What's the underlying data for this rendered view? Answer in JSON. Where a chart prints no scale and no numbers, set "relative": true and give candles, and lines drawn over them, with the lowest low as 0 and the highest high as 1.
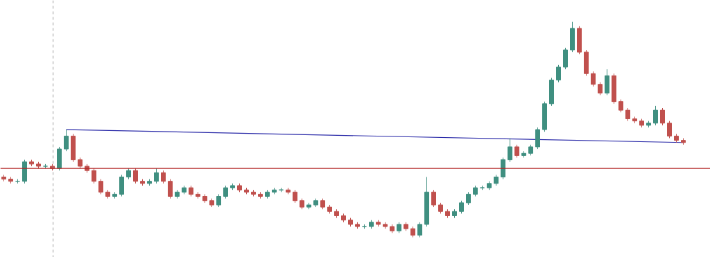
{
  "chart_data": {
    "type": "candlestick",
    "relative": true,
    "categories": [
      null,
      null,
      null,
      null,
      null,
      null,
      null,
      null,
      null,
      null,
      null,
      null,
      null,
      null,
      null,
      null,
      null,
      null,
      null,
      null,
      null,
      null,
      null,
      null,
      null,
      null,
      null,
      null,
      null,
      null,
      null,
      null,
      null,
      null,
      null,
      null,
      null,
      null,
      null,
      null,
      null,
      null,
      null,
      null,
      null,
      null,
      null,
      null,
      null,
      null,
      null,
      null,
      null,
      null,
      null,
      null,
      null,
      null,
      null,
      null,
      null,
      null,
      null,
      null,
      null,
      null,
      null,
      null,
      null,
      null,
      null,
      null,
      null,
      null,
      null,
      null,
      null,
      null,
      null,
      null,
      null,
      null,
      null,
      null,
      null,
      null,
      null,
      null,
      null,
      null,
      null,
      null,
      null,
      null,
      null,
      null,
      null,
      null,
      null
    ],
    "ohlc": [
      [
        0.28,
        0.29,
        0.26,
        0.27
      ],
      [
        0.27,
        0.28,
        0.25,
        0.26
      ],
      [
        0.26,
        0.27,
        0.25,
        0.26
      ],
      [
        0.26,
        0.36,
        0.25,
        0.35
      ],
      [
        0.35,
        0.36,
        0.33,
        0.34
      ],
      [
        0.34,
        0.35,
        0.32,
        0.33
      ],
      [
        0.33,
        0.34,
        0.32,
        0.33
      ],
      [
        0.33,
        0.34,
        0.31,
        0.32
      ],
      [
        0.32,
        0.42,
        0.31,
        0.41
      ],
      [
        0.41,
        0.5,
        0.4,
        0.47
      ],
      [
        0.47,
        0.48,
        0.35,
        0.36
      ],
      [
        0.36,
        0.37,
        0.32,
        0.33
      ],
      [
        0.33,
        0.34,
        0.3,
        0.31
      ],
      [
        0.31,
        0.32,
        0.25,
        0.26
      ],
      [
        0.26,
        0.27,
        0.2,
        0.21
      ],
      [
        0.21,
        0.22,
        0.18,
        0.19
      ],
      [
        0.19,
        0.21,
        0.18,
        0.2
      ],
      [
        0.2,
        0.29,
        0.19,
        0.28
      ],
      [
        0.28,
        0.32,
        0.27,
        0.31
      ],
      [
        0.31,
        0.32,
        0.25,
        0.26
      ],
      [
        0.26,
        0.27,
        0.24,
        0.25
      ],
      [
        0.25,
        0.27,
        0.24,
        0.26
      ],
      [
        0.26,
        0.32,
        0.25,
        0.3
      ],
      [
        0.3,
        0.31,
        0.25,
        0.26
      ],
      [
        0.26,
        0.27,
        0.18,
        0.19
      ],
      [
        0.19,
        0.22,
        0.18,
        0.21
      ],
      [
        0.21,
        0.24,
        0.2,
        0.23
      ],
      [
        0.23,
        0.24,
        0.19,
        0.2
      ],
      [
        0.2,
        0.21,
        0.18,
        0.19
      ],
      [
        0.19,
        0.2,
        0.16,
        0.17
      ],
      [
        0.17,
        0.18,
        0.14,
        0.15
      ],
      [
        0.15,
        0.2,
        0.14,
        0.19
      ],
      [
        0.19,
        0.24,
        0.18,
        0.23
      ],
      [
        0.23,
        0.25,
        0.22,
        0.24
      ],
      [
        0.24,
        0.25,
        0.21,
        0.22
      ],
      [
        0.22,
        0.23,
        0.2,
        0.21
      ],
      [
        0.21,
        0.22,
        0.19,
        0.2
      ],
      [
        0.2,
        0.21,
        0.18,
        0.19
      ],
      [
        0.19,
        0.22,
        0.18,
        0.21
      ],
      [
        0.21,
        0.23,
        0.2,
        0.22
      ],
      [
        0.22,
        0.23,
        0.21,
        0.22
      ],
      [
        0.22,
        0.23,
        0.2,
        0.21
      ],
      [
        0.21,
        0.22,
        0.16,
        0.17
      ],
      [
        0.17,
        0.18,
        0.13,
        0.14
      ],
      [
        0.14,
        0.16,
        0.13,
        0.15
      ],
      [
        0.15,
        0.18,
        0.14,
        0.17
      ],
      [
        0.17,
        0.18,
        0.13,
        0.14
      ],
      [
        0.14,
        0.15,
        0.11,
        0.12
      ],
      [
        0.12,
        0.13,
        0.09,
        0.1
      ],
      [
        0.1,
        0.11,
        0.07,
        0.08
      ],
      [
        0.08,
        0.09,
        0.05,
        0.06
      ],
      [
        0.06,
        0.07,
        0.04,
        0.05
      ],
      [
        0.05,
        0.06,
        0.04,
        0.05
      ],
      [
        0.05,
        0.08,
        0.04,
        0.07
      ],
      [
        0.07,
        0.08,
        0.05,
        0.06
      ],
      [
        0.06,
        0.07,
        0.04,
        0.05
      ],
      [
        0.05,
        0.06,
        0.02,
        0.03
      ],
      [
        0.03,
        0.07,
        0.02,
        0.06
      ],
      [
        0.06,
        0.07,
        0.03,
        0.04
      ],
      [
        0.04,
        0.05,
        0.0,
        0.01
      ],
      [
        0.01,
        0.07,
        0.0,
        0.06
      ],
      [
        0.06,
        0.28,
        0.05,
        0.21
      ],
      [
        0.21,
        0.22,
        0.14,
        0.15
      ],
      [
        0.15,
        0.16,
        0.11,
        0.12
      ],
      [
        0.12,
        0.13,
        0.09,
        0.1
      ],
      [
        0.1,
        0.13,
        0.09,
        0.12
      ],
      [
        0.12,
        0.17,
        0.11,
        0.16
      ],
      [
        0.16,
        0.21,
        0.15,
        0.2
      ],
      [
        0.2,
        0.24,
        0.19,
        0.23
      ],
      [
        0.23,
        0.24,
        0.22,
        0.23
      ],
      [
        0.23,
        0.26,
        0.22,
        0.25
      ],
      [
        0.25,
        0.29,
        0.24,
        0.28
      ],
      [
        0.28,
        0.37,
        0.27,
        0.36
      ],
      [
        0.36,
        0.46,
        0.35,
        0.42
      ],
      [
        0.42,
        0.43,
        0.37,
        0.38
      ],
      [
        0.38,
        0.4,
        0.37,
        0.39
      ],
      [
        0.39,
        0.43,
        0.38,
        0.42
      ],
      [
        0.42,
        0.51,
        0.41,
        0.5
      ],
      [
        0.5,
        0.63,
        0.49,
        0.62
      ],
      [
        0.62,
        0.74,
        0.61,
        0.73
      ],
      [
        0.73,
        0.8,
        0.72,
        0.79
      ],
      [
        0.79,
        0.88,
        0.78,
        0.87
      ],
      [
        0.87,
        1.0,
        0.86,
        0.97
      ],
      [
        0.97,
        0.98,
        0.85,
        0.86
      ],
      [
        0.86,
        0.87,
        0.75,
        0.76
      ],
      [
        0.76,
        0.77,
        0.7,
        0.71
      ],
      [
        0.71,
        0.72,
        0.66,
        0.67
      ],
      [
        0.67,
        0.78,
        0.66,
        0.75
      ],
      [
        0.75,
        0.76,
        0.62,
        0.63
      ],
      [
        0.63,
        0.64,
        0.58,
        0.59
      ],
      [
        0.59,
        0.6,
        0.54,
        0.55
      ],
      [
        0.55,
        0.56,
        0.53,
        0.54
      ],
      [
        0.54,
        0.55,
        0.51,
        0.52
      ],
      [
        0.52,
        0.54,
        0.51,
        0.53
      ],
      [
        0.53,
        0.61,
        0.52,
        0.59
      ],
      [
        0.59,
        0.6,
        0.52,
        0.53
      ],
      [
        0.53,
        0.54,
        0.46,
        0.47
      ],
      [
        0.47,
        0.48,
        0.44,
        0.45
      ],
      [
        0.45,
        0.46,
        0.43,
        0.44
      ]
    ],
    "series": [
      {
        "type": "line",
        "color": "#2a2aa8",
        "values": [
          null,
          null,
          null,
          null,
          null,
          null,
          null,
          null,
          null,
          0.5,
          null,
          null,
          null,
          null,
          null,
          null,
          null,
          null,
          null,
          null,
          null,
          null,
          null,
          null,
          null,
          null,
          null,
          null,
          null,
          null,
          null,
          null,
          null,
          null,
          null,
          null,
          null,
          null,
          null,
          null,
          null,
          null,
          null,
          null,
          null,
          null,
          null,
          null,
          null,
          null,
          null,
          null,
          null,
          null,
          null,
          null,
          null,
          null,
          null,
          null,
          null,
          null,
          null,
          null,
          null,
          null,
          null,
          null,
          null,
          null,
          null,
          null,
          null,
          null,
          null,
          null,
          null,
          null,
          null,
          null,
          null,
          null,
          null,
          null,
          null,
          null,
          null,
          null,
          null,
          null,
          null,
          null,
          null,
          null,
          null,
          null,
          null,
          null,
          0.44
        ]
      }
    ],
    "ref_lines": [
      {
        "axis": "y",
        "value": 0.32,
        "color": "#b22222"
      }
    ]
  }
}
